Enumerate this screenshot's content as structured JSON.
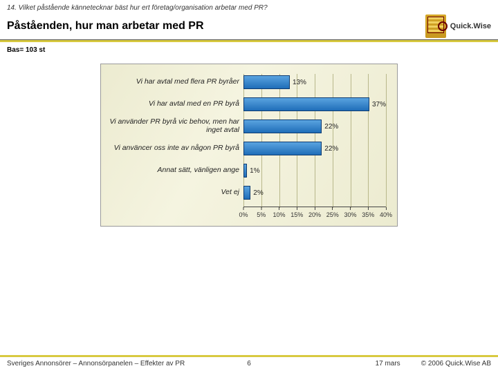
{
  "question": "14. Vilket påstående kännetecknar bäst hur ert företag/organisation arbetar med PR?",
  "title": "Påståenden, hur man arbetar med PR",
  "logo_text": "Quick.Wise",
  "base": "Bas= 103 st",
  "chart": {
    "type": "bar",
    "x_max": 40,
    "x_tick_step": 5,
    "x_tick_suffix": "%",
    "bar_color_top": "#5aa3e0",
    "bar_color_bottom": "#1f6db8",
    "bar_border": "#0d3a70",
    "background": "#ecebd0",
    "grid_color": "#b8b78a",
    "label_fontsize": 10.5,
    "value_fontsize": 10,
    "categories": [
      "Vi har avtal med flera PR byråer",
      "Vi har avtal med en PR byrå",
      "Vi använder PR byrå vic behov, men har inget avtal",
      "Vi använcer oss inte av någon PR byrå",
      "Annat sätt, vänligen ange",
      "Vet ej"
    ],
    "values": [
      13,
      37,
      22,
      22,
      1,
      2
    ]
  },
  "footer": {
    "left": "Sveriges Annonsörer – Annonsörpanelen – Effekter av PR",
    "page": "6",
    "date": "17 mars",
    "copyright": "© 2006 Quick.Wise AB"
  }
}
